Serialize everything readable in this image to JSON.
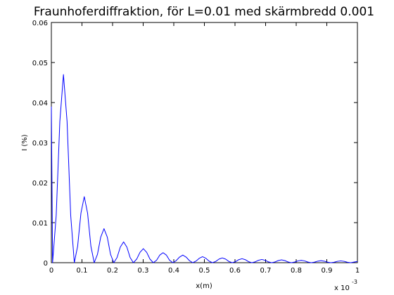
{
  "chart_data": {
    "type": "line",
    "title": "Fraunhoferdiffraktion, för L=0.01 med skärmbredd 0.001",
    "xlabel": "x(m)",
    "ylabel": "I (%)",
    "x_multiplier": "x 10",
    "x_multiplier_exponent": "-3",
    "xlim": [
      0,
      1
    ],
    "ylim": [
      0,
      0.06
    ],
    "xticks": [
      0,
      0.1,
      0.2,
      0.3,
      0.4,
      0.5,
      0.6,
      0.7,
      0.8,
      0.9,
      1
    ],
    "yticks": [
      0,
      0.01,
      0.02,
      0.03,
      0.04,
      0.05,
      0.06
    ],
    "grid": false,
    "series": [
      {
        "color": "#0000ff",
        "x": [
          0,
          0.004,
          0.0158,
          0.0277,
          0.0395,
          0.0513,
          0.0632,
          0.075,
          0.0858,
          0.0967,
          0.1075,
          0.1183,
          0.1292,
          0.14,
          0.1507,
          0.1613,
          0.172,
          0.1827,
          0.1933,
          0.204,
          0.2147,
          0.2253,
          0.236,
          0.2467,
          0.2573,
          0.268,
          0.2788,
          0.2897,
          0.3005,
          0.3113,
          0.3222,
          0.333,
          0.3437,
          0.3543,
          0.365,
          0.3757,
          0.3863,
          0.397,
          0.4078,
          0.4187,
          0.4295,
          0.4403,
          0.4512,
          0.462,
          0.4727,
          0.4833,
          0.494,
          0.5047,
          0.5153,
          0.526,
          0.5368,
          0.5477,
          0.5585,
          0.5693,
          0.5802,
          0.591,
          0.6017,
          0.6123,
          0.623,
          0.6337,
          0.6443,
          0.655,
          0.6658,
          0.6767,
          0.6875,
          0.6983,
          0.7092,
          0.72,
          0.7307,
          0.7413,
          0.752,
          0.7627,
          0.7733,
          0.784,
          0.7948,
          0.8057,
          0.8165,
          0.8273,
          0.8382,
          0.849,
          0.8597,
          0.8703,
          0.881,
          0.8917,
          0.9023,
          0.913,
          0.9238,
          0.9347,
          0.9455,
          0.9563,
          0.9672,
          0.978,
          1
        ],
        "values": [
          0.039,
          0,
          0.0118,
          0.0353,
          0.047,
          0.0353,
          0.0118,
          0,
          0.0041,
          0.0124,
          0.0165,
          0.0124,
          0.0041,
          0,
          0.0021,
          0.0064,
          0.0085,
          0.0064,
          0.0021,
          0,
          0.0013,
          0.0039,
          0.0052,
          0.0039,
          0.0013,
          0,
          0.0009,
          0.0026,
          0.0035,
          0.0026,
          0.0009,
          0,
          0.0006,
          0.0019,
          0.0025,
          0.0019,
          0.0006,
          0,
          0.0005,
          0.0014,
          0.0019,
          0.0014,
          0.0005,
          0,
          0.0004,
          0.0011,
          0.0015,
          0.0011,
          0.0004,
          0,
          0.0003,
          0.0009,
          0.0012,
          0.0009,
          0.0003,
          0,
          0.00025,
          0.00075,
          0.001,
          0.00075,
          0.00025,
          0,
          0.0002,
          0.0006,
          0.0008,
          0.0006,
          0.0002,
          0,
          0.00018,
          0.00053,
          0.0007,
          0.00053,
          0.00018,
          0,
          0.00015,
          0.00045,
          0.0006,
          0.00045,
          0.00015,
          0,
          0.00013,
          0.00038,
          0.0005,
          0.00038,
          0.00013,
          0,
          0.00011,
          0.00034,
          0.00045,
          0.00034,
          0.00011,
          0,
          0.0003
        ]
      }
    ]
  }
}
